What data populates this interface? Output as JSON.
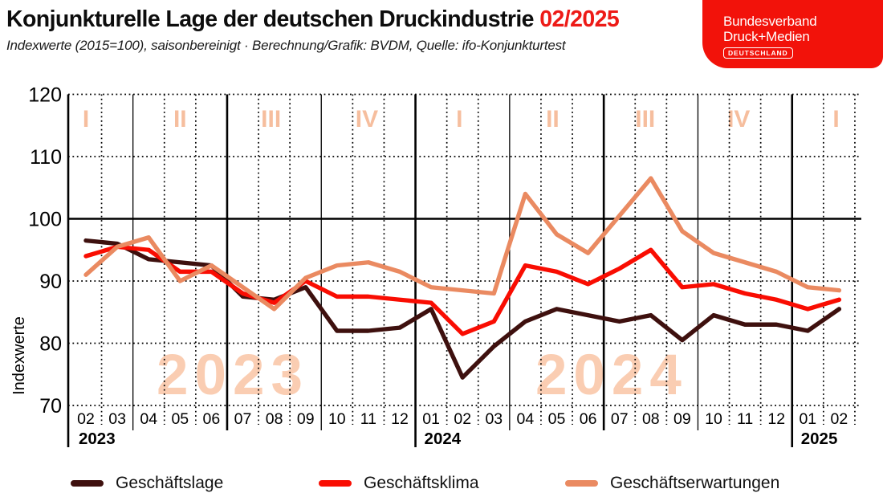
{
  "header": {
    "title": "Konjunkturelle Lage der deutschen Druckindustrie",
    "title_period": "02/2025",
    "subtitle": "Indexwerte (2015=100), saisonbereinigt · Berechnung/Grafik: BVDM, Quelle: ifo-Konjunkturtest",
    "accent_color": "#ED1B17"
  },
  "logo": {
    "line1": "Bundesverband",
    "line2": "Druck+Medien",
    "badge": "DEUTSCHLAND",
    "bg_color": "#F2120A",
    "text_color": "#ffffff"
  },
  "chart_data": {
    "type": "line",
    "ylabel": "Indexwerte",
    "ylim": [
      70,
      120
    ],
    "yticks": [
      120,
      110,
      100,
      90,
      80,
      70
    ],
    "baseline_value": 100,
    "grid": "on",
    "months": [
      "02",
      "03",
      "04",
      "05",
      "06",
      "07",
      "08",
      "09",
      "10",
      "11",
      "12",
      "01",
      "02",
      "03",
      "04",
      "05",
      "06",
      "07",
      "08",
      "09",
      "10",
      "11",
      "12",
      "01",
      "02"
    ],
    "years": [
      {
        "label": "2023",
        "at_month": 0
      },
      {
        "label": "2024",
        "at_month": 11
      },
      {
        "label": "2025",
        "at_month": 23
      }
    ],
    "quarters": [
      {
        "label": "I",
        "pos": 0.0
      },
      {
        "label": "II",
        "pos": 3.0
      },
      {
        "label": "III",
        "pos": 5.9
      },
      {
        "label": "IV",
        "pos": 8.95
      },
      {
        "label": "I",
        "pos": 11.9
      },
      {
        "label": "II",
        "pos": 14.87
      },
      {
        "label": "III",
        "pos": 17.82
      },
      {
        "label": "IV",
        "pos": 20.8
      },
      {
        "label": "I",
        "pos": 23.9
      }
    ],
    "watermarks": [
      {
        "label": "2023",
        "pos": 4.68
      },
      {
        "label": "2024",
        "pos": 16.75
      }
    ],
    "quarter_color": "#F6BE9E",
    "watermark_color": "#FACDB2",
    "series": [
      {
        "name": "Geschäftslage",
        "color": "#3E100E",
        "values": [
          96.5,
          96,
          93.5,
          93,
          92.5,
          87.5,
          87,
          89,
          82,
          82,
          82.5,
          85.5,
          74.5,
          79.5,
          83.5,
          85.5,
          84.5,
          83.5,
          84.5,
          80.5,
          84.5,
          83,
          83,
          82,
          85.5
        ]
      },
      {
        "name": "Geschäftsklima",
        "color": "#F90D02",
        "values": [
          94,
          95.5,
          95,
          91.5,
          91.5,
          88,
          86.5,
          90,
          87.5,
          87.5,
          87,
          86.5,
          81.5,
          83.5,
          92.5,
          91.5,
          89.5,
          92,
          95,
          89,
          89.5,
          88,
          87,
          85.5,
          87
        ]
      },
      {
        "name": "Geschäftserwartungen",
        "color": "#EA8A61",
        "values": [
          91,
          95.5,
          97,
          90,
          92.5,
          89,
          85.5,
          90.5,
          92.5,
          93,
          91.5,
          89,
          88.5,
          88,
          104,
          97.5,
          94.5,
          100.5,
          106.5,
          98,
          94.5,
          93,
          91.5,
          89,
          88.5
        ]
      }
    ]
  },
  "legend": {
    "items": [
      "Geschäftslage",
      "Geschäftsklima",
      "Geschäftserwartungen"
    ]
  }
}
